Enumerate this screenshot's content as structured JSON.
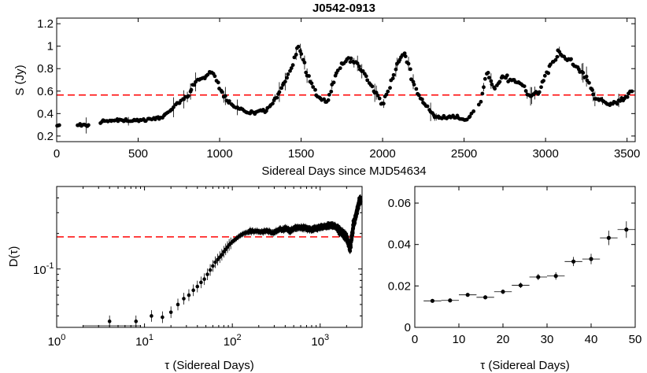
{
  "figure": {
    "title": "J0542-0913",
    "colors": {
      "points": "#000000",
      "axis": "#000000",
      "mean_line": "#ff0000",
      "background": "#ffffff"
    }
  },
  "chart_data": [
    {
      "id": "lightcurve",
      "type": "scatter",
      "title": "J0542-0913",
      "xlabel": "Sidereal Days since MJD54634",
      "ylabel": "S (Jy)",
      "xlim": [
        0,
        3550
      ],
      "ylim": [
        0.15,
        1.25
      ],
      "xticks": [
        0,
        500,
        1000,
        1500,
        2000,
        2500,
        3000,
        3500
      ],
      "yticks": [
        0.2,
        0.4,
        0.6,
        0.8,
        1.0,
        1.2
      ],
      "ytick_labels": [
        "0.2",
        "0.4",
        "0.6",
        "0.8",
        "1",
        "1.2"
      ],
      "hline": {
        "y": 0.565,
        "style": "dashed",
        "color": "#ff0000"
      },
      "anchors": [
        [
          0,
          0.29
        ],
        [
          130,
          0.3
        ],
        [
          190,
          0.29
        ],
        [
          280,
          0.33
        ],
        [
          400,
          0.34
        ],
        [
          500,
          0.34
        ],
        [
          600,
          0.35
        ],
        [
          680,
          0.4
        ],
        [
          740,
          0.48
        ],
        [
          800,
          0.55
        ],
        [
          860,
          0.7
        ],
        [
          920,
          0.73
        ],
        [
          960,
          0.78
        ],
        [
          1000,
          0.62
        ],
        [
          1060,
          0.5
        ],
        [
          1120,
          0.44
        ],
        [
          1200,
          0.4
        ],
        [
          1280,
          0.42
        ],
        [
          1340,
          0.52
        ],
        [
          1400,
          0.68
        ],
        [
          1450,
          0.85
        ],
        [
          1480,
          1.02
        ],
        [
          1540,
          0.75
        ],
        [
          1600,
          0.55
        ],
        [
          1660,
          0.5
        ],
        [
          1720,
          0.78
        ],
        [
          1780,
          0.88
        ],
        [
          1840,
          0.85
        ],
        [
          1900,
          0.72
        ],
        [
          1970,
          0.55
        ],
        [
          2000,
          0.48
        ],
        [
          2050,
          0.66
        ],
        [
          2100,
          0.88
        ],
        [
          2140,
          0.93
        ],
        [
          2200,
          0.62
        ],
        [
          2260,
          0.48
        ],
        [
          2320,
          0.37
        ],
        [
          2420,
          0.37
        ],
        [
          2520,
          0.35
        ],
        [
          2600,
          0.5
        ],
        [
          2640,
          0.78
        ],
        [
          2680,
          0.62
        ],
        [
          2740,
          0.73
        ],
        [
          2800,
          0.7
        ],
        [
          2860,
          0.66
        ],
        [
          2900,
          0.55
        ],
        [
          2960,
          0.6
        ],
        [
          3020,
          0.8
        ],
        [
          3080,
          0.95
        ],
        [
          3140,
          0.88
        ],
        [
          3200,
          0.8
        ],
        [
          3260,
          0.7
        ],
        [
          3300,
          0.55
        ],
        [
          3380,
          0.48
        ],
        [
          3440,
          0.5
        ],
        [
          3500,
          0.56
        ],
        [
          3530,
          0.62
        ]
      ],
      "gaps": [
        [
          20,
          120
        ],
        [
          200,
          270
        ],
        [
          2560,
          2590
        ]
      ]
    },
    {
      "id": "structure_function",
      "type": "scatter",
      "xlabel": "τ (Sidereal Days)",
      "ylabel": "D(τ)",
      "xscale": "log",
      "yscale": "log",
      "xlim": [
        1,
        3000
      ],
      "ylim": [
        0.032,
        0.5
      ],
      "xticks": [
        1,
        10,
        100,
        1000
      ],
      "xtick_base": "10",
      "xtick_exponents": [
        "0",
        "1",
        "2",
        "3"
      ],
      "ytick_major": 0.1,
      "ytick_base": "10",
      "ytick_exponent": "-1",
      "hline": {
        "y": 0.187,
        "style": "dashed",
        "color": "#ff0000"
      },
      "points": [
        [
          2,
          0.035
        ],
        [
          4,
          0.036
        ],
        [
          6,
          0.035
        ],
        [
          8,
          0.036
        ],
        [
          12,
          0.04
        ],
        [
          16,
          0.039
        ],
        [
          20,
          0.043
        ],
        [
          24,
          0.05
        ],
        [
          28,
          0.056
        ],
        [
          32,
          0.06
        ],
        [
          36,
          0.066
        ],
        [
          40,
          0.071
        ],
        [
          44,
          0.077
        ],
        [
          48,
          0.082
        ],
        [
          52,
          0.09
        ],
        [
          56,
          0.098
        ],
        [
          60,
          0.106
        ],
        [
          64,
          0.114
        ],
        [
          68,
          0.12
        ],
        [
          72,
          0.126
        ],
        [
          76,
          0.132
        ],
        [
          80,
          0.14
        ],
        [
          86,
          0.15
        ],
        [
          92,
          0.16
        ],
        [
          100,
          0.17
        ],
        [
          110,
          0.18
        ],
        [
          120,
          0.19
        ],
        [
          135,
          0.2
        ],
        [
          150,
          0.205
        ],
        [
          170,
          0.21
        ],
        [
          190,
          0.21
        ],
        [
          220,
          0.205
        ],
        [
          260,
          0.21
        ],
        [
          300,
          0.205
        ],
        [
          350,
          0.215
        ],
        [
          400,
          0.22
        ],
        [
          450,
          0.21
        ],
        [
          500,
          0.22
        ],
        [
          600,
          0.225
        ],
        [
          700,
          0.22
        ],
        [
          800,
          0.215
        ],
        [
          1000,
          0.225
        ],
        [
          1200,
          0.23
        ],
        [
          1400,
          0.235
        ],
        [
          1600,
          0.22
        ],
        [
          1800,
          0.2
        ],
        [
          2000,
          0.185
        ],
        [
          2200,
          0.15
        ],
        [
          2400,
          0.24
        ],
        [
          2600,
          0.3
        ],
        [
          2800,
          0.38
        ]
      ]
    },
    {
      "id": "structure_function_zoom",
      "type": "scatter",
      "xlabel": "τ (Sidereal Days)",
      "ylabel": "",
      "xlim": [
        0,
        50
      ],
      "ylim": [
        0,
        0.068
      ],
      "xticks": [
        0,
        10,
        20,
        30,
        40,
        50
      ],
      "yticks": [
        0,
        0.02,
        0.04,
        0.06
      ],
      "ytick_labels": [
        "0",
        "0.02",
        "0.04",
        "0.06"
      ],
      "points": [
        {
          "x": 4,
          "y": 0.0128,
          "xerr": 2,
          "yerr": 0.0006
        },
        {
          "x": 8,
          "y": 0.013,
          "xerr": 2,
          "yerr": 0.0006
        },
        {
          "x": 12,
          "y": 0.0157,
          "xerr": 2,
          "yerr": 0.0009
        },
        {
          "x": 16,
          "y": 0.0145,
          "xerr": 2,
          "yerr": 0.001
        },
        {
          "x": 20,
          "y": 0.0172,
          "xerr": 2,
          "yerr": 0.0011
        },
        {
          "x": 24,
          "y": 0.0203,
          "xerr": 2,
          "yerr": 0.0013
        },
        {
          "x": 28,
          "y": 0.0243,
          "xerr": 2,
          "yerr": 0.0015
        },
        {
          "x": 32,
          "y": 0.0248,
          "xerr": 2,
          "yerr": 0.0018
        },
        {
          "x": 36,
          "y": 0.0318,
          "xerr": 2,
          "yerr": 0.0022
        },
        {
          "x": 40,
          "y": 0.033,
          "xerr": 2,
          "yerr": 0.0025
        },
        {
          "x": 44,
          "y": 0.0432,
          "xerr": 2,
          "yerr": 0.0035
        },
        {
          "x": 48,
          "y": 0.0472,
          "xerr": 2,
          "yerr": 0.004
        }
      ]
    }
  ]
}
